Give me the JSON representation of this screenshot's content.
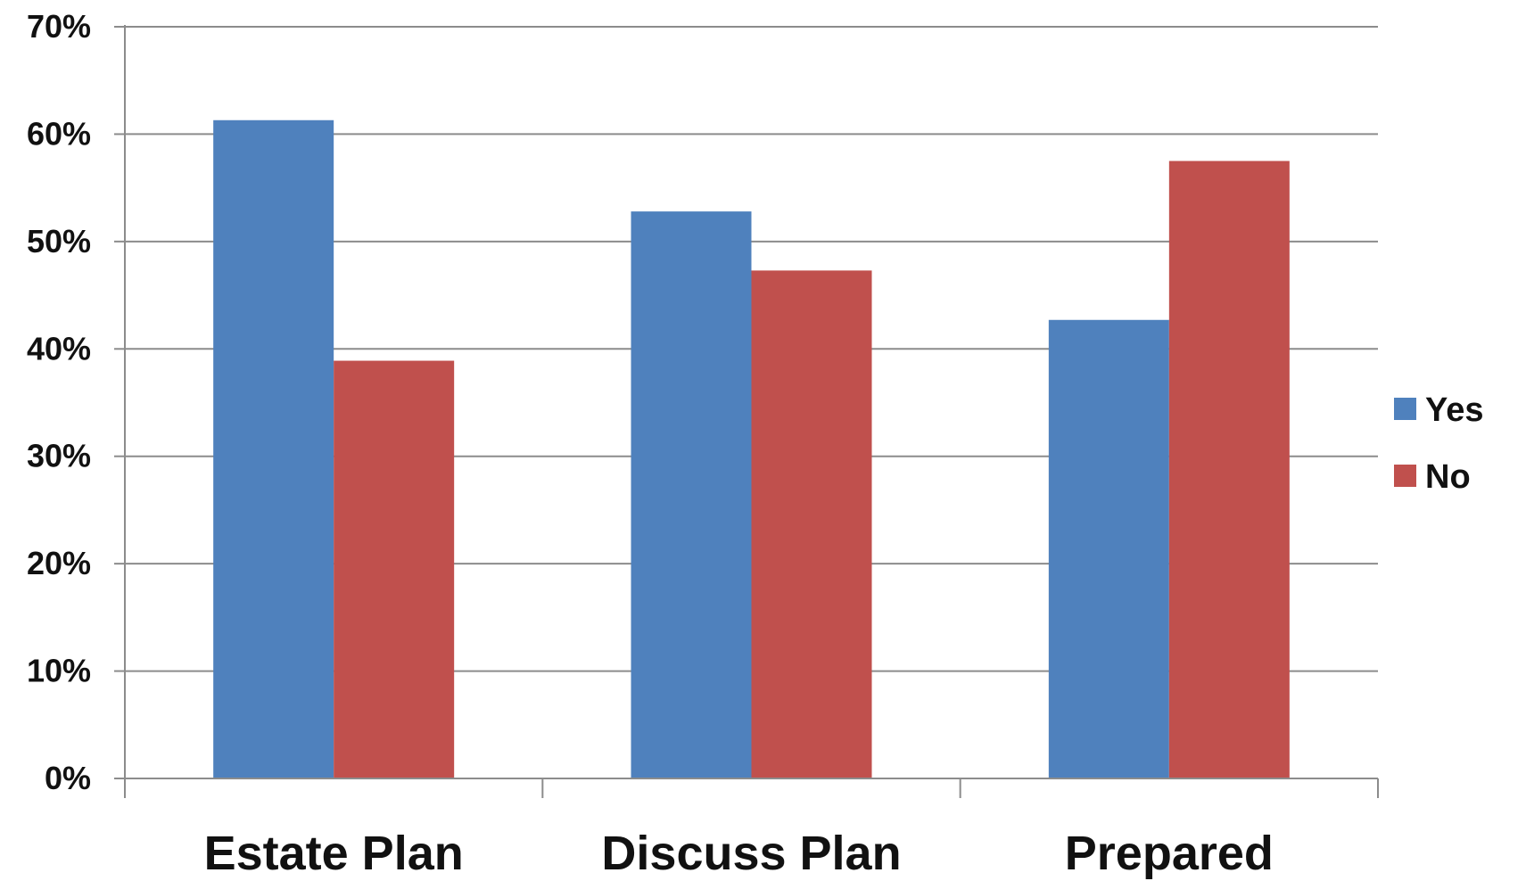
{
  "chart_data": {
    "type": "bar",
    "title": "",
    "xlabel": "",
    "ylabel": "",
    "categories": [
      "Estate Plan",
      "Discuss Plan",
      "Prepared"
    ],
    "series": [
      {
        "name": "Yes",
        "values": [
          61.3,
          52.8,
          42.7
        ],
        "color": "#4F81BD"
      },
      {
        "name": "No",
        "values": [
          38.9,
          47.3,
          57.5
        ],
        "color": "#C0504D"
      }
    ],
    "ylim": [
      0,
      70
    ],
    "yticks": [
      0,
      10,
      20,
      30,
      40,
      50,
      60,
      70
    ],
    "ytick_labels": [
      "0%",
      "10%",
      "20%",
      "30%",
      "40%",
      "50%",
      "60%",
      "70%"
    ],
    "grid": true,
    "legend_position": "right"
  }
}
